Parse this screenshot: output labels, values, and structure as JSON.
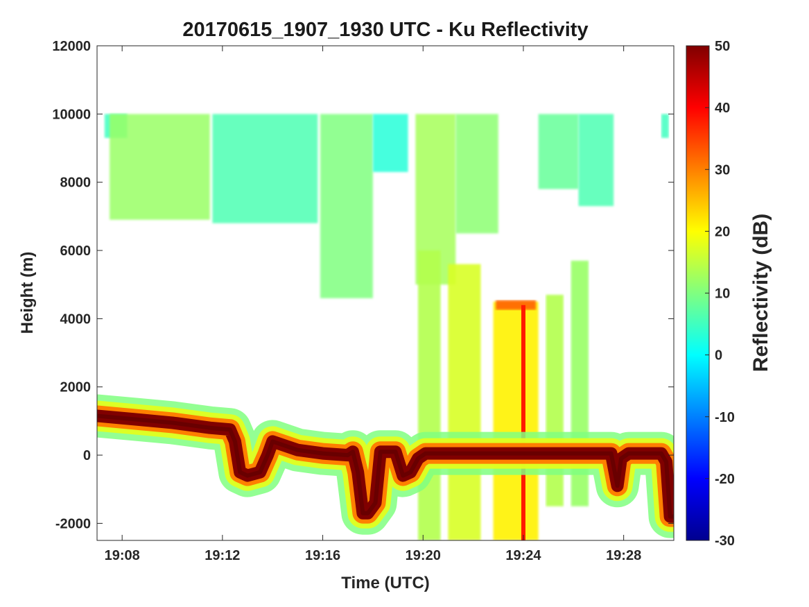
{
  "chart_data": {
    "type": "heatmap",
    "title": "20170615_1907_1930 UTC - Ku Reflectivity",
    "xlabel": "Time (UTC)",
    "ylabel": "Height (m)",
    "x_ticks": [
      "19:08",
      "19:12",
      "19:16",
      "19:20",
      "19:24",
      "19:28"
    ],
    "x_tick_minutes": [
      8,
      12,
      16,
      20,
      24,
      28
    ],
    "xlim_minutes_after_1900": [
      7.0,
      30.0
    ],
    "y_ticks": [
      12000,
      10000,
      8000,
      6000,
      4000,
      2000,
      0,
      -2000
    ],
    "ylim": [
      -2500,
      12000
    ],
    "colorbar": {
      "label": "Reflectivity (dB)",
      "range": [
        -30,
        50
      ],
      "ticks": [
        50,
        40,
        30,
        20,
        10,
        0,
        -10,
        -20,
        -30
      ],
      "colormap": "jet",
      "colors": [
        "#00008f",
        "#0000ff",
        "#0080ff",
        "#00ffff",
        "#80ff80",
        "#ffff00",
        "#ff8000",
        "#ff0000",
        "#800000"
      ]
    },
    "features": {
      "upper_cloud": {
        "top_height": 10000,
        "segments": [
          {
            "start": 7.3,
            "end": 8.2,
            "bottom": 9300,
            "dbz": 5
          },
          {
            "start": 7.5,
            "end": 11.5,
            "bottom": 6900,
            "dbz": 12
          },
          {
            "start": 11.6,
            "end": 15.8,
            "bottom": 6800,
            "dbz": 6
          },
          {
            "start": 15.9,
            "end": 18.0,
            "bottom": 4600,
            "dbz": 10
          },
          {
            "start": 18.0,
            "end": 19.4,
            "bottom": 8300,
            "dbz": 3
          },
          {
            "start": 19.7,
            "end": 21.3,
            "bottom": 5000,
            "dbz": 13
          },
          {
            "start": 21.3,
            "end": 23.0,
            "bottom": 6500,
            "dbz": 11
          },
          {
            "start": 24.6,
            "end": 26.2,
            "bottom": 7800,
            "dbz": 8
          },
          {
            "start": 26.2,
            "end": 27.6,
            "bottom": 7300,
            "dbz": 6
          },
          {
            "start": 29.5,
            "end": 29.8,
            "bottom": 9300,
            "dbz": 5
          }
        ]
      },
      "precip_columns": [
        {
          "start": 19.8,
          "end": 20.7,
          "top": 6000,
          "bottom": -2500,
          "dbz": 14
        },
        {
          "start": 21.0,
          "end": 22.3,
          "top": 5600,
          "bottom": -2500,
          "dbz": 17
        },
        {
          "start": 22.8,
          "end": 24.6,
          "top": 4500,
          "bottom": -2500,
          "dbz": 21
        },
        {
          "start": 24.9,
          "end": 25.6,
          "top": 4700,
          "bottom": -1500,
          "dbz": 14
        },
        {
          "start": 25.9,
          "end": 26.6,
          "top": 5700,
          "bottom": -1500,
          "dbz": 12
        }
      ],
      "melting_layer": {
        "start": 22.9,
        "end": 24.5,
        "height": 4400,
        "dbz": 33
      },
      "streak": {
        "time": 24.0,
        "top": 4400,
        "bottom": -2500,
        "dbz": 38
      },
      "surface_return": {
        "dbz": 50,
        "time": [
          7.0,
          8.5,
          10.0,
          11.5,
          12.3,
          12.5,
          12.7,
          13.0,
          13.5,
          13.8,
          14.0,
          15.0,
          16.0,
          17.0,
          17.2,
          17.4,
          17.6,
          17.8,
          18.1,
          18.3,
          18.5,
          18.9,
          19.2,
          19.5,
          19.8,
          20.1,
          20.5,
          21.0,
          23.0,
          25.0,
          27.5,
          27.75,
          27.9,
          28.2,
          29.5,
          29.7,
          29.85,
          30.0
        ],
        "height": [
          1150,
          1050,
          950,
          800,
          750,
          400,
          -500,
          -600,
          -500,
          0,
          400,
          150,
          50,
          0,
          100,
          -500,
          -1700,
          -1700,
          -1400,
          100,
          100,
          100,
          -600,
          -500,
          -100,
          50,
          50,
          50,
          50,
          50,
          50,
          -900,
          -100,
          50,
          50,
          -200,
          -1800,
          -1800
        ]
      }
    }
  }
}
